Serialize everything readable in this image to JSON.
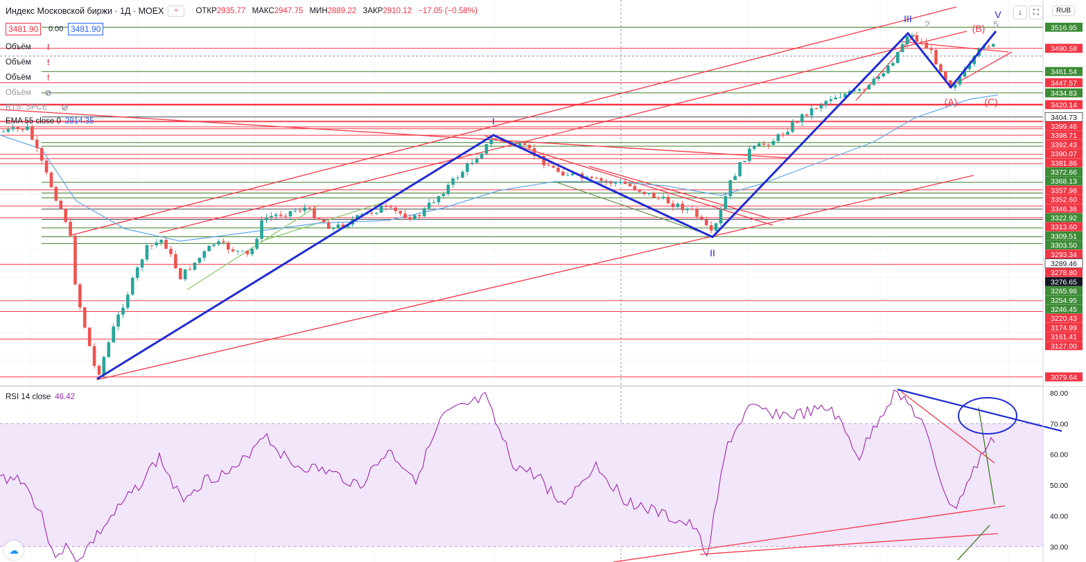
{
  "header": {
    "symbol": "Индекс Московской биржи · 1Д · MOEX",
    "open_label": "ОТКР",
    "open": "2935.77",
    "high_label": "МАКС",
    "high": "2947.75",
    "low_label": "МИН",
    "low": "2889.22",
    "close_label": "ЗАКР",
    "close": "2910.12",
    "change": "−17.05 (−0.58%)",
    "sell_price": "3481.90",
    "spread": "0.00",
    "buy_price": "3481.90"
  },
  "legend": {
    "volume1": "Объём",
    "volume2": "Объём",
    "volume3": "Объём",
    "volume4": "Объём",
    "hidden_indicator": "RTS: SPCE",
    "ema_label": "EMA 55 close 0",
    "ema_value": "2914.35",
    "rsi_label": "RSI 14 close",
    "rsi_value": "46.42"
  },
  "toolbar": {
    "currency": "RUB",
    "down_icon": "arrow-down-icon",
    "fullscreen_icon": "fullscreen-icon"
  },
  "colors": {
    "up": "#26a69a",
    "down": "#ef5350",
    "line_red": "#f23645",
    "line_green": "#3d7a22",
    "wave_blue": "#1f2ad6",
    "ema": "#5ea6e8",
    "rsi": "#9c27b0",
    "rsi_band": "#f2e6fb"
  },
  "chart_data": [
    {
      "type": "candlestick",
      "title": "Индекс Московской биржи · 1Д · MOEX",
      "y_axis_side": "right",
      "ylim": [
        3070,
        3525
      ],
      "grid": true,
      "price_axis_labels": [
        {
          "value": 3516.95,
          "label": "3516.95",
          "bg": "#3d8b37"
        },
        {
          "value": 3490.58,
          "label": "3490.58",
          "bg": "#f23645"
        },
        {
          "value": 3404.73,
          "label": "3404.73",
          "bg": "#ffffff",
          "fg": "#131722"
        },
        {
          "value": 3461.54,
          "label": "3461.54",
          "bg": "#3d8b37"
        },
        {
          "value": 3447.57,
          "label": "3447.57",
          "bg": "#f23645"
        },
        {
          "value": 3434.83,
          "label": "3434.83",
          "bg": "#3d8b37"
        },
        {
          "value": 3420.14,
          "label": "3420.14",
          "bg": "#f23645"
        },
        {
          "value": 3399.46,
          "label": "3399.46",
          "bg": "#f23645"
        },
        {
          "value": 3398.71,
          "label": "3398.71",
          "bg": "#f23645"
        },
        {
          "value": 3392.43,
          "label": "3392.43",
          "bg": "#f23645"
        },
        {
          "value": 3390.07,
          "label": "3390.07",
          "bg": "#f23645"
        },
        {
          "value": 3381.86,
          "label": "3381.86",
          "bg": "#f23645"
        },
        {
          "value": 3372.66,
          "label": "3372.66",
          "bg": "#3d8b37"
        },
        {
          "value": 3368.13,
          "label": "3368.13",
          "bg": "#3d8b37"
        },
        {
          "value": 3357.98,
          "label": "3357.98",
          "bg": "#f23645"
        },
        {
          "value": 3352.6,
          "label": "3352.60",
          "bg": "#f23645"
        },
        {
          "value": 3346.36,
          "label": "3346.36",
          "bg": "#f23645"
        },
        {
          "value": 3322.92,
          "label": "3322.92",
          "bg": "#3d8b37"
        },
        {
          "value": 3313.6,
          "label": "3313.60",
          "bg": "#f23645"
        },
        {
          "value": 3309.51,
          "label": "3309.51",
          "bg": "#3d8b37"
        },
        {
          "value": 3303.5,
          "label": "3303.50",
          "bg": "#3d8b37"
        },
        {
          "value": 3293.34,
          "label": "3293.34",
          "bg": "#f23645"
        },
        {
          "value": 3289.46,
          "label": "3289.46",
          "bg": "#ffffff",
          "fg": "#131722"
        },
        {
          "value": 3278.8,
          "label": "3278.80",
          "bg": "#f23645"
        },
        {
          "value": 3276.65,
          "label": "3276.65",
          "bg": "#131722"
        },
        {
          "value": 3265.98,
          "label": "3265.98",
          "bg": "#3d8b37"
        },
        {
          "value": 3254.95,
          "label": "3254.95",
          "bg": "#3d8b37"
        },
        {
          "value": 3246.45,
          "label": "3246.45",
          "bg": "#3d8b37"
        },
        {
          "value": 3220.43,
          "label": "3220.43",
          "bg": "#f23645"
        },
        {
          "value": 3174.99,
          "label": "3174.99",
          "bg": "#f23645"
        },
        {
          "value": 3161.41,
          "label": "3161.41",
          "bg": "#f23645"
        },
        {
          "value": 3127.0,
          "label": "3127.00",
          "bg": "#f23645"
        },
        {
          "value": 3079.64,
          "label": "3079.64",
          "bg": "#f23645"
        }
      ],
      "wave_labels": [
        {
          "text": "I",
          "color": "#1f2ad6"
        },
        {
          "text": "II",
          "color": "#1f2ad6"
        },
        {
          "text": "III",
          "color": "#1f2ad6"
        },
        {
          "text": "V",
          "color": "#1f2ad6"
        },
        {
          "text": "(B)",
          "color": "#f23645"
        },
        {
          "text": "(C)",
          "color": "#f23645"
        },
        {
          "text": "(A)",
          "color": "#f23645"
        },
        {
          "text": "5",
          "color": "#9598a1"
        },
        {
          "text": "2",
          "color": "#9598a1"
        }
      ]
    },
    {
      "type": "line",
      "title": "RSI 14 close",
      "ylim": [
        25,
        82
      ],
      "y_ticks": [
        30,
        40,
        50,
        60,
        70,
        80
      ],
      "band": [
        30,
        70
      ],
      "last_value": 46.42
    }
  ]
}
